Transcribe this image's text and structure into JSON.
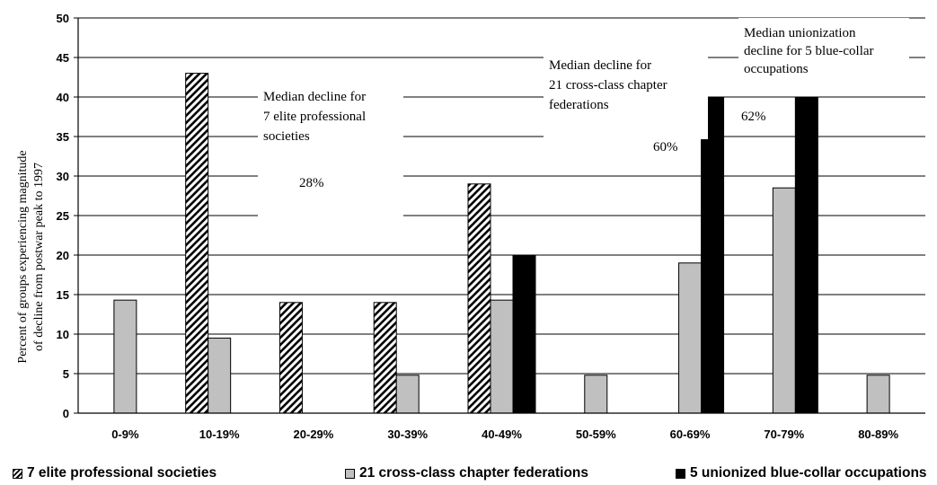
{
  "chart_data": {
    "type": "bar",
    "ylabel": [
      "Percent of groups experiencing magnitude",
      "of decline from postwar peak to 1997"
    ],
    "xlabel": "",
    "ylim": [
      0,
      50
    ],
    "yticks": [
      0,
      5,
      10,
      15,
      20,
      25,
      30,
      35,
      40,
      45,
      50
    ],
    "categories": [
      "0-9%",
      "10-19%",
      "20-29%",
      "30-39%",
      "40-49%",
      "50-59%",
      "60-69%",
      "70-79%",
      "80-89%"
    ],
    "series": [
      {
        "name": "7 elite professional societies",
        "pattern": "hatch",
        "values": [
          0,
          43,
          14,
          14,
          29,
          0,
          0,
          0,
          0
        ]
      },
      {
        "name": "21 cross-class chapter federations",
        "color": "#c0c0c0",
        "values": [
          14.3,
          9.5,
          0,
          4.8,
          14.3,
          4.8,
          19,
          28.5,
          4.8
        ]
      },
      {
        "name": "5 unionized blue-collar occupations",
        "color": "#000000",
        "values": [
          0,
          0,
          0,
          0,
          20,
          0,
          40,
          40,
          0
        ]
      }
    ],
    "grid": true,
    "legend_position": "bottom",
    "annotations": [
      {
        "lines": [
          "Median decline for",
          "7 elite professional",
          "societies"
        ],
        "value": "28%"
      },
      {
        "lines": [
          "Median decline for",
          "21 cross-class chapter",
          "federations"
        ],
        "value": "60%"
      },
      {
        "lines": [
          "Median unionization",
          "decline for 5 blue-collar",
          "occupations"
        ],
        "value": "62%"
      }
    ]
  }
}
